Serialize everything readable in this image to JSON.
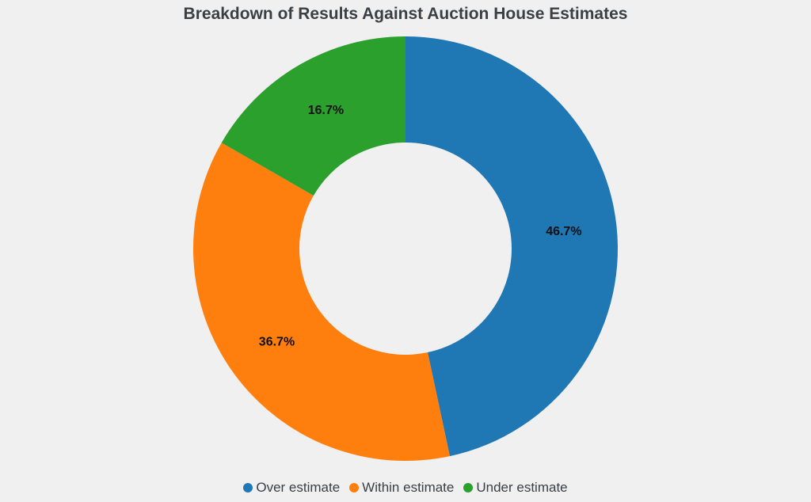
{
  "chart_data": {
    "type": "pie",
    "title": "Breakdown of Results Against Auction House Estimates",
    "donut": true,
    "categories": [
      "Over estimate",
      "Within estimate",
      "Under estimate"
    ],
    "values": [
      46.7,
      36.7,
      16.7
    ],
    "labels": [
      "46.7%",
      "36.7%",
      "16.7%"
    ],
    "colors": [
      "#1f77b4",
      "#ff7f0e",
      "#2ca02c"
    ],
    "legend_position": "bottom"
  }
}
